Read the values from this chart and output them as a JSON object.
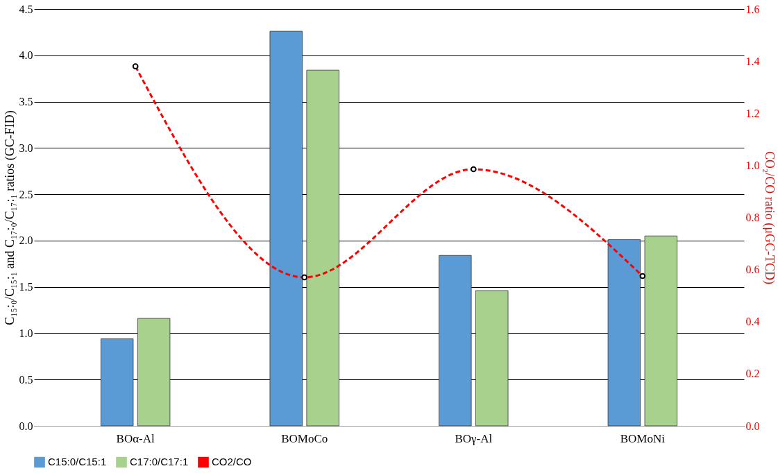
{
  "chart_data": {
    "type": "bar",
    "ylabel": "C₁₅:₀/C₁₅:₁ and C₁₇:₀/C₁₇:₁ ratios (GC-FID)",
    "y2label": "CO₂/CO ratio (μGC-TCD)",
    "categories": [
      "BOα-Al",
      "BOMoCo",
      "BOγ-Al",
      "BOMoNi"
    ],
    "series": [
      {
        "name": "C15:0/C15:1",
        "color": "#5b9bd5",
        "values": [
          0.94,
          4.26,
          1.84,
          2.01
        ]
      },
      {
        "name": "C17:0/C17:1",
        "color": "#a9d18e",
        "values": [
          1.16,
          3.84,
          1.46,
          2.05
        ]
      },
      {
        "name": "CO2/CO",
        "type": "line",
        "axis": "y2",
        "color": "#ff0000",
        "marker": "circle",
        "line_style": "dashed",
        "values": [
          1.38,
          0.57,
          0.985,
          0.575
        ]
      }
    ],
    "ylim": [
      0,
      4.5
    ],
    "yticks": [
      {
        "value": 0,
        "label": "0.0"
      },
      {
        "value": 0.5,
        "label": "0.5"
      },
      {
        "value": 1,
        "label": "1.0"
      },
      {
        "value": 1.5,
        "label": "1.5"
      },
      {
        "value": 2,
        "label": "2.0"
      },
      {
        "value": 2.5,
        "label": "2.5"
      },
      {
        "value": 3,
        "label": "3.0"
      },
      {
        "value": 3.5,
        "label": "3.5"
      },
      {
        "value": 4,
        "label": "4.0"
      },
      {
        "value": 4.5,
        "label": "4.5"
      }
    ],
    "y2lim": [
      0,
      1.6
    ],
    "y2ticks": [
      {
        "value": 0,
        "label": "0.0"
      },
      {
        "value": 0.2,
        "label": "0.2"
      },
      {
        "value": 0.4,
        "label": "0.4"
      },
      {
        "value": 0.6,
        "label": "0.6"
      },
      {
        "value": 0.8,
        "label": "0.8"
      },
      {
        "value": 1,
        "label": "1.0"
      },
      {
        "value": 1.2,
        "label": "1.2"
      },
      {
        "value": 1.4,
        "label": "1.4"
      },
      {
        "value": 1.6,
        "label": "1.6"
      }
    ],
    "grid": "y",
    "legend": "bottom"
  }
}
